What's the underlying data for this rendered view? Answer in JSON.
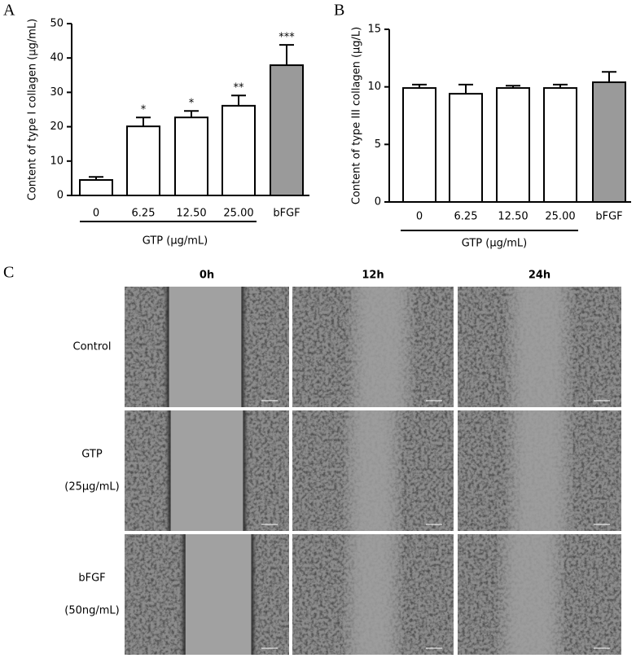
{
  "chart_data": [
    {
      "type": "bar",
      "panel_label": "A",
      "y_label": "Content of type I collagen (μg/mL)",
      "x_label": "GTP (μg/mL)",
      "categories": [
        "0",
        "6.25",
        "12.50",
        "25.00",
        "bFGF"
      ],
      "values": [
        4.5,
        20.1,
        22.7,
        26.1,
        37.9
      ],
      "errors": [
        0.9,
        2.6,
        1.9,
        3.0,
        5.9
      ],
      "annotations": [
        null,
        "*",
        "*",
        "**",
        "***"
      ],
      "colors": [
        "#ffffff",
        "#ffffff",
        "#ffffff",
        "#ffffff",
        "#9a9a9a"
      ],
      "ylim": [
        0,
        50
      ],
      "yticks": [
        0,
        10,
        20,
        30,
        40,
        50
      ]
    },
    {
      "type": "bar",
      "panel_label": "B",
      "y_label": "Content of type III collagen (μg/L)",
      "x_label": "GTP (μg/mL)",
      "categories": [
        "0",
        "6.25",
        "12.50",
        "25.00",
        "bFGF"
      ],
      "values": [
        9.9,
        9.4,
        9.9,
        9.9,
        10.4
      ],
      "errors": [
        0.3,
        0.8,
        0.2,
        0.3,
        0.9
      ],
      "colors": [
        "#ffffff",
        "#ffffff",
        "#ffffff",
        "#ffffff",
        "#9a9a9a"
      ],
      "ylim": [
        0,
        15
      ],
      "yticks": [
        0,
        5,
        10,
        15
      ]
    }
  ],
  "panel_c": {
    "panel_label": "C",
    "columns": [
      "0h",
      "12h",
      "24h"
    ],
    "rows": [
      [
        "Control"
      ],
      [
        "GTP",
        "(25μg/mL)"
      ],
      [
        "bFGF",
        "(50ng/mL)"
      ]
    ]
  }
}
